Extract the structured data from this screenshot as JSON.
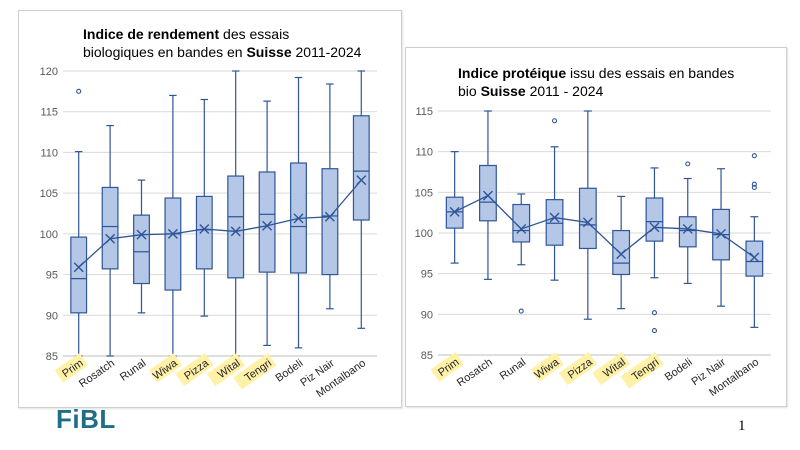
{
  "page": {
    "logo": "FiBL",
    "page_number": "1"
  },
  "chart_data": [
    {
      "type": "boxplot",
      "title_parts": [
        {
          "text": "Indice de rendement",
          "bold": true
        },
        {
          "text": " des essais",
          "bold": false
        },
        {
          "text": "biologiques en bandes en ",
          "bold": false,
          "newline": true
        },
        {
          "text": "Suisse",
          "bold": true
        },
        {
          "text": " 2011-2024",
          "bold": false
        }
      ],
      "xlabel": "",
      "ylabel": "",
      "ylim": [
        85,
        120
      ],
      "yticks": [
        85,
        90,
        95,
        100,
        105,
        110,
        115,
        120
      ],
      "grid": true,
      "mean_line": true,
      "box_color": "#b4c7e7",
      "line_color": "#2f5597",
      "highlight_color": "#fff2a8",
      "categories": [
        "Prim",
        "Rosatch",
        "Runal",
        "Wiwa",
        "Pizza",
        "Wital",
        "Tengri",
        "Bodeli",
        "Piz Nair",
        "Montalbano"
      ],
      "highlighted": [
        true,
        false,
        false,
        true,
        true,
        true,
        true,
        false,
        false,
        false
      ],
      "min": [
        85.0,
        85.0,
        90.3,
        85.0,
        89.9,
        85.0,
        86.3,
        86.0,
        90.8,
        88.4
      ],
      "q1": [
        90.3,
        95.7,
        93.9,
        93.1,
        95.7,
        94.6,
        95.3,
        95.2,
        95.0,
        101.7
      ],
      "median": [
        94.5,
        100.9,
        97.8,
        100.0,
        100.5,
        102.1,
        102.4,
        100.9,
        102.2,
        107.7
      ],
      "q3": [
        99.6,
        105.7,
        102.3,
        104.4,
        104.6,
        107.1,
        107.6,
        108.7,
        108.0,
        114.5
      ],
      "max": [
        110.1,
        113.3,
        106.6,
        117.0,
        116.5,
        120.0,
        116.3,
        119.2,
        118.4,
        120.0
      ],
      "mean": [
        95.9,
        99.4,
        99.9,
        100.0,
        100.6,
        100.3,
        101.0,
        101.9,
        102.1,
        106.6
      ],
      "outliers": [
        [
          117.5
        ],
        [],
        [],
        [],
        [],
        [],
        [],
        [],
        [],
        []
      ]
    },
    {
      "type": "boxplot",
      "title_parts": [
        {
          "text": "Indice protéique",
          "bold": true
        },
        {
          "text": " issu des essais en bandes",
          "bold": false
        },
        {
          "text": "bio ",
          "bold": false,
          "newline": true
        },
        {
          "text": "Suisse",
          "bold": true
        },
        {
          "text": " 2011 - 2024",
          "bold": false
        }
      ],
      "xlabel": "",
      "ylabel": "",
      "ylim": [
        85,
        115
      ],
      "yticks": [
        85,
        90,
        95,
        100,
        105,
        110,
        115
      ],
      "grid": true,
      "mean_line": true,
      "box_color": "#b4c7e7",
      "line_color": "#2f5597",
      "highlight_color": "#fff2a8",
      "categories": [
        "Prim",
        "Rosatch",
        "Runal",
        "Wiwa",
        "Pizza",
        "Wital",
        "Tengri",
        "Bodeli",
        "Piz Nair",
        "Montalbano"
      ],
      "highlighted": [
        true,
        false,
        false,
        true,
        true,
        true,
        true,
        false,
        false,
        false
      ],
      "min": [
        96.3,
        94.3,
        96.1,
        94.2,
        89.4,
        90.7,
        94.5,
        93.8,
        91.0,
        88.4
      ],
      "q1": [
        100.6,
        101.5,
        98.9,
        98.5,
        98.1,
        94.9,
        99.0,
        98.3,
        96.7,
        94.7
      ],
      "median": [
        102.6,
        103.8,
        100.3,
        101.2,
        101.0,
        96.3,
        101.4,
        100.3,
        99.8,
        96.5
      ],
      "q3": [
        104.4,
        108.3,
        103.5,
        104.1,
        105.5,
        100.3,
        104.3,
        102.0,
        102.9,
        99.0
      ],
      "max": [
        110.0,
        115.0,
        104.8,
        110.6,
        115.0,
        104.5,
        108.0,
        106.7,
        107.9,
        102.0
      ],
      "mean": [
        102.6,
        104.6,
        100.5,
        101.9,
        101.3,
        97.4,
        100.7,
        100.5,
        99.9,
        97.0
      ],
      "outliers": [
        [],
        [],
        [
          90.4
        ],
        [
          113.8
        ],
        [],
        [],
        [
          90.2,
          88.0
        ],
        [
          108.5
        ],
        [],
        [
          109.5,
          106.0,
          105.6
        ]
      ]
    }
  ]
}
